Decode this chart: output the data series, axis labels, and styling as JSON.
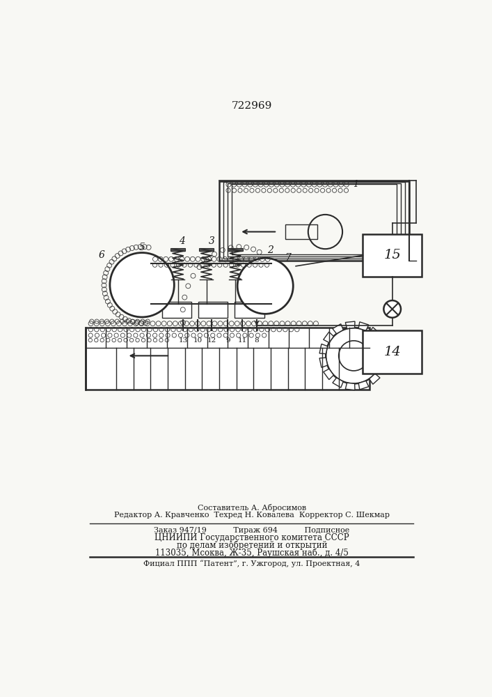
{
  "patent_number": "722969",
  "bg": "#f8f8f4",
  "lc": "#2a2a2a",
  "tc": "#1a1a1a",
  "footer": [
    "Составитель А. Абросимов",
    "Редактор А. Кравченко  Техред Н. Ковалева  Корректор С. Шекмар",
    "Заказ 947/19           Тираж 694           Подписное",
    "ЦНИИПИ Государственного комитета СССР",
    "по делам изобретений и открытий",
    "113035, Мсоква, Ж-35, Раушская наб., д. 4/5",
    "Фициал ППП “Патент”, г. Ужгород, ул. Проектная, 4"
  ]
}
